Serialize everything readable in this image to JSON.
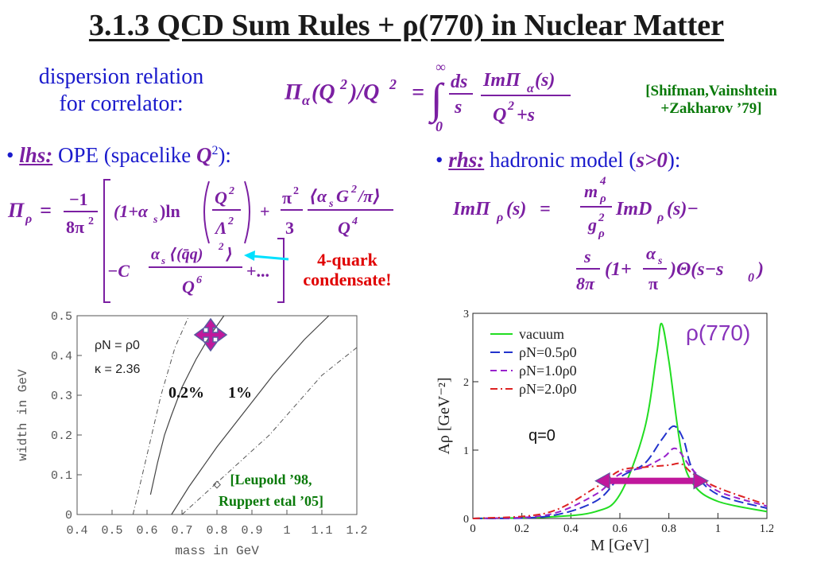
{
  "title": "3.1.3 QCD Sum Rules + ρ(770) in Nuclear Matter",
  "dispersion": {
    "line1": "dispersion relation",
    "line2": "for correlator:"
  },
  "reference_top": {
    "line1": "[Shifman,Vainshtein",
    "line2": "+Zakharov ’79]"
  },
  "lhs": {
    "bullet": "•",
    "label": "lhs:",
    "text": "OPE (spacelike"
  },
  "rhs": {
    "bullet": "•",
    "label": "rhs:",
    "text": "hadronic model ("
  },
  "condensate": {
    "line1": "4-quark",
    "line2": "condensate!"
  },
  "plot_left": {
    "ylabel": "width in GeV",
    "xlabel": "mass in GeV",
    "y_ticks": [
      "0.5",
      "0.4",
      "0.3",
      "0.2",
      "0.1",
      "0"
    ],
    "x_ticks": [
      "0.4",
      "0.5",
      "0.6",
      "0.7",
      "0.8",
      "0.9",
      "1",
      "1.1",
      "1.2"
    ],
    "legend_density": "ρN = ρ0",
    "legend_kappa": "κ = 2.36",
    "label_02": "0.2%",
    "label_1": "1%",
    "ref_line1": "[Leupold ’98,",
    "ref_line2": "Ruppert etal ’05]"
  },
  "plot_right": {
    "ylabel": "Aρ [GeV⁻²]",
    "xlabel": "M [GeV]",
    "title": "ρ(770)",
    "annotation": "q=0",
    "y_ticks": [
      "0",
      "1",
      "2",
      "3"
    ],
    "x_ticks": [
      "0",
      "0.2",
      "0.4",
      "0.6",
      "0.8",
      "1",
      "1.2"
    ],
    "legend": [
      "vacuum",
      "ρN=0.5ρ0",
      "ρN=1.0ρ0",
      "ρN=2.0ρ0"
    ]
  },
  "colors": {
    "title": "#1a1a1a",
    "text_blue": "#1a1acc",
    "math_purple": "#7b1fa2",
    "ref_green": "#0a7a0a",
    "annot_red": "#e00000",
    "arrow_magenta": "#c0189c",
    "arrow_cyan": "#00e0ff",
    "vacuum_green": "#22dd22",
    "half_blue": "#2233cc",
    "one_purple": "#9922cc",
    "two_red": "#dd2222"
  },
  "chart_data": [
    {
      "type": "line",
      "xlabel": "mass in GeV",
      "ylabel": "width in GeV",
      "xlim": [
        0.4,
        1.2
      ],
      "ylim": [
        0,
        0.5
      ],
      "series": [
        {
          "name": "0.2%",
          "x": [
            0.61,
            0.63,
            0.65,
            0.67,
            0.7,
            0.74,
            0.78,
            0.82
          ],
          "y": [
            0.05,
            0.13,
            0.2,
            0.25,
            0.32,
            0.39,
            0.45,
            0.5
          ]
        },
        {
          "name": "1%",
          "x": [
            0.67,
            0.72,
            0.8,
            0.88,
            0.96,
            1.05,
            1.12
          ],
          "y": [
            0.0,
            0.07,
            0.17,
            0.26,
            0.35,
            0.44,
            0.5
          ]
        }
      ]
    },
    {
      "type": "line",
      "xlabel": "M [GeV]",
      "ylabel": "Aρ [GeV⁻²]",
      "xlim": [
        0,
        1.2
      ],
      "ylim": [
        0,
        3
      ],
      "series": [
        {
          "name": "vacuum",
          "x": [
            0,
            0.3,
            0.5,
            0.6,
            0.7,
            0.75,
            0.77,
            0.8,
            0.85,
            0.9,
            1.0,
            1.2
          ],
          "y": [
            0,
            0.02,
            0.1,
            0.35,
            1.3,
            2.4,
            2.85,
            2.3,
            1.0,
            0.5,
            0.25,
            0.1
          ]
        },
        {
          "name": "ρN=0.5ρ0",
          "x": [
            0,
            0.3,
            0.5,
            0.6,
            0.7,
            0.77,
            0.82,
            0.86,
            0.9,
            1.0,
            1.2
          ],
          "y": [
            0,
            0.03,
            0.25,
            0.6,
            0.8,
            1.15,
            1.35,
            1.15,
            0.7,
            0.35,
            0.15
          ]
        },
        {
          "name": "ρN=1.0ρ0",
          "x": [
            0,
            0.3,
            0.5,
            0.6,
            0.7,
            0.78,
            0.83,
            0.9,
            1.0,
            1.2
          ],
          "y": [
            0,
            0.05,
            0.35,
            0.65,
            0.75,
            0.9,
            1.02,
            0.7,
            0.4,
            0.18
          ]
        },
        {
          "name": "ρN=2.0ρ0",
          "x": [
            0,
            0.3,
            0.5,
            0.6,
            0.7,
            0.8,
            0.85,
            0.9,
            1.0,
            1.2
          ],
          "y": [
            0,
            0.08,
            0.45,
            0.7,
            0.75,
            0.78,
            0.8,
            0.65,
            0.45,
            0.2
          ]
        }
      ]
    }
  ]
}
